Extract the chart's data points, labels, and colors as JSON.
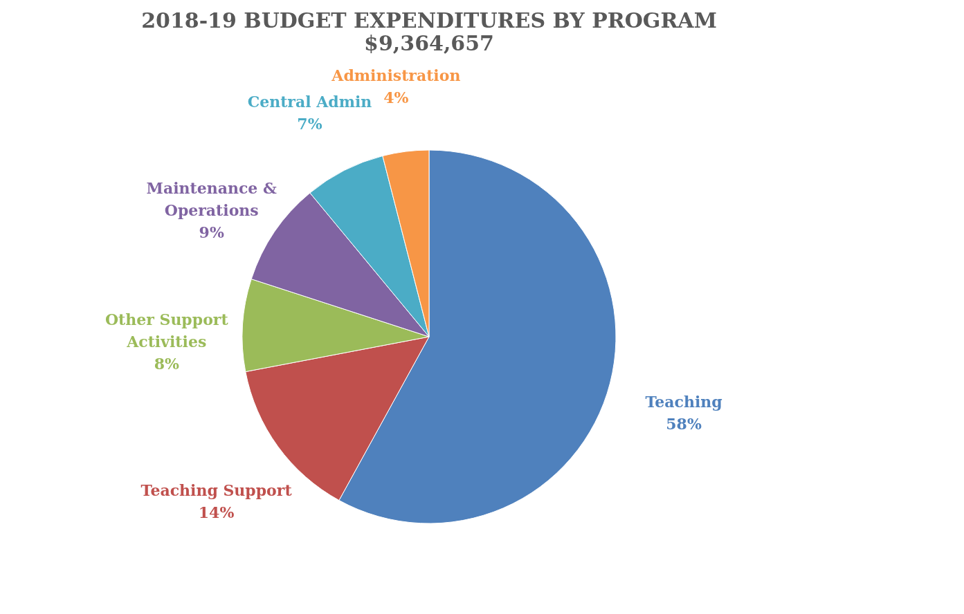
{
  "chart_data": {
    "type": "pie",
    "title": "2018-19  BUDGET EXPENDITURES BY PROGRAM",
    "subtitle": "$9,364,657",
    "categories": [
      "Teaching",
      "Teaching Support",
      "Other Support Activities",
      "Maintenance & Operations",
      "Central Admin",
      "Administration"
    ],
    "values": [
      58,
      14,
      8,
      9,
      7,
      4
    ],
    "colors": [
      "#4f81bd",
      "#c0504d",
      "#9bbb59",
      "#8064a2",
      "#4bacc6",
      "#f79646"
    ],
    "value_labels": [
      "58%",
      "14%",
      "8%",
      "9%",
      "7%",
      "4%"
    ],
    "legend": false
  }
}
